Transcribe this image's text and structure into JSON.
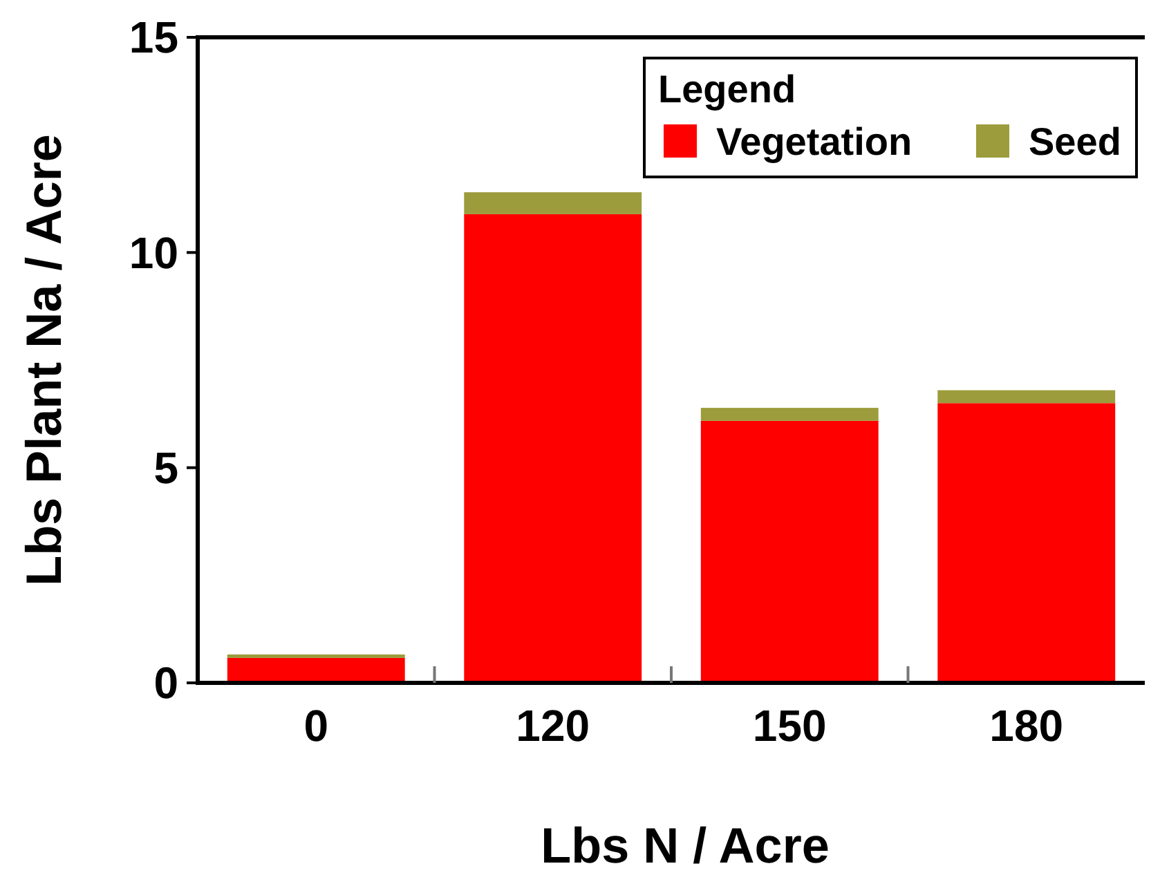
{
  "chart_data": {
    "type": "bar",
    "stacked": true,
    "xlabel": "Lbs N / Acre",
    "ylabel": "Lbs Plant Na / Acre",
    "legend_title": "Legend",
    "legend": "top right",
    "categories": [
      "0",
      "120",
      "150",
      "180"
    ],
    "series": [
      {
        "name": "Vegetation",
        "color": "#ff0000",
        "values": [
          0.58,
          10.89,
          6.09,
          6.5
        ]
      },
      {
        "name": "Seed",
        "color": "#9c9c3c",
        "values": [
          0.08,
          0.51,
          0.3,
          0.3
        ]
      }
    ],
    "ylim": [
      0,
      15
    ],
    "yticks": [
      0,
      5,
      10,
      15
    ]
  }
}
